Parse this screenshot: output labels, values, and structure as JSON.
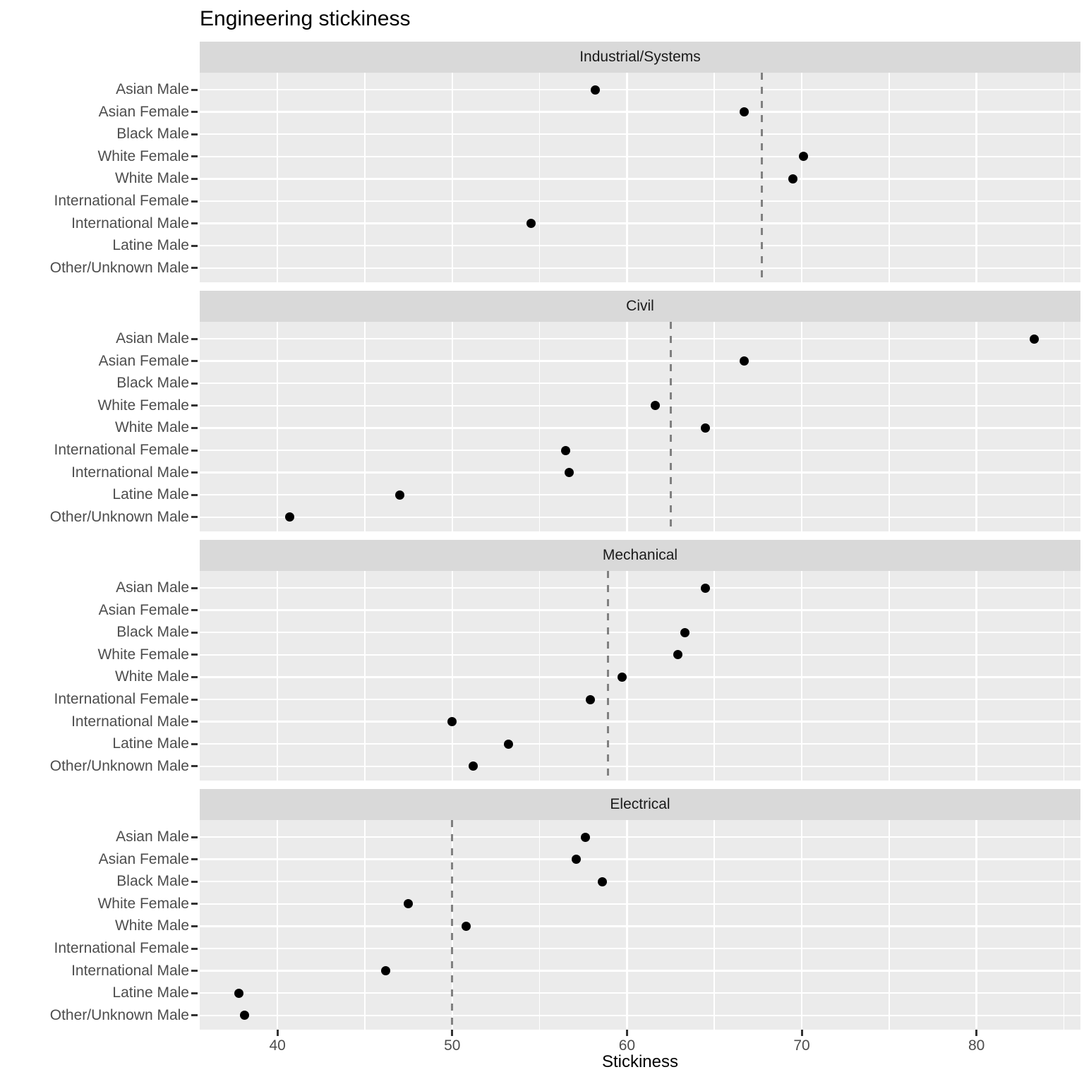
{
  "chart_data": {
    "type": "scatter",
    "title": "Engineering stickiness",
    "xlabel": "Stickiness",
    "ylabel": "",
    "xlim": [
      35.55,
      85.95
    ],
    "grid": true,
    "legend": "none",
    "x_ticks": [
      40,
      50,
      60,
      70,
      80
    ],
    "x_minor_ticks": [
      45,
      55,
      65,
      75,
      85
    ],
    "categories": [
      "Asian Male",
      "Asian Female",
      "Black Male",
      "White Female",
      "White Male",
      "International Female",
      "International Male",
      "Latine Male",
      "Other/Unknown Male"
    ],
    "facets": [
      {
        "label": "Industrial/Systems",
        "ref_line": 67.7,
        "values": [
          58.2,
          66.7,
          null,
          70.1,
          69.5,
          null,
          54.5,
          null,
          null
        ]
      },
      {
        "label": "Civil",
        "ref_line": 62.5,
        "values": [
          83.3,
          66.7,
          null,
          61.6,
          64.5,
          56.5,
          56.7,
          47.0,
          40.7
        ]
      },
      {
        "label": "Mechanical",
        "ref_line": 58.9,
        "values": [
          64.5,
          null,
          63.3,
          62.9,
          59.7,
          57.9,
          50.0,
          53.2,
          51.2
        ]
      },
      {
        "label": "Electrical",
        "ref_line": 50.0,
        "values": [
          57.6,
          57.1,
          58.6,
          47.5,
          50.8,
          null,
          46.2,
          37.8,
          38.1
        ]
      }
    ]
  },
  "colors": {
    "background": "#FFFFFF",
    "panel_bg": "#EBEBEB",
    "strip_bg": "#D9D9D9",
    "strip_text": "#1A1A1A",
    "grid": "#FFFFFF",
    "point": "#000000",
    "ref_line": "#808080",
    "axis_text": "#4D4D4D",
    "tick": "#333333",
    "title_text": "#000000"
  }
}
